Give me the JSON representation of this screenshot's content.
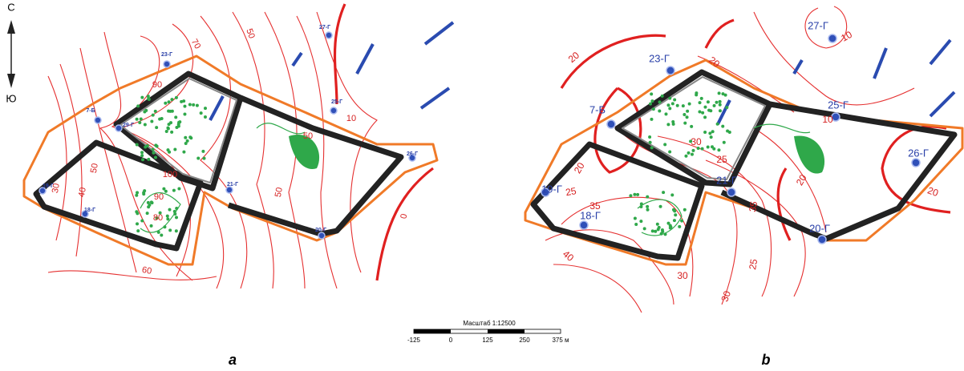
{
  "compass": {
    "north": "С",
    "south": "Ю"
  },
  "scale": {
    "title": "Масштаб 1:12500",
    "ticks": [
      "-125",
      "0",
      "125",
      "250",
      "375 м"
    ]
  },
  "panels": [
    {
      "label": "a",
      "wells": [
        "27-Г",
        "23-Г",
        "7-Б",
        "29-Г",
        "25-Г",
        "26-Г",
        "21-Г",
        "18-Г",
        "20-Г",
        "19-Г"
      ],
      "contour_labels": [
        "90",
        "70",
        "50",
        "40",
        "50",
        "30",
        "100",
        "90",
        "80",
        "60",
        "50",
        "50",
        "0",
        "10"
      ]
    },
    {
      "label": "b",
      "wells": [
        "27-Г",
        "23-Г",
        "7-Б",
        "25-Г",
        "26-Г",
        "21-Г",
        "18-Г",
        "20-Г",
        "19-Г"
      ],
      "contour_labels": [
        "10",
        "20",
        "20",
        "20",
        "25",
        "30",
        "35",
        "40",
        "25",
        "30",
        "35",
        "30",
        "25",
        "20",
        "10",
        "20"
      ]
    }
  ]
}
